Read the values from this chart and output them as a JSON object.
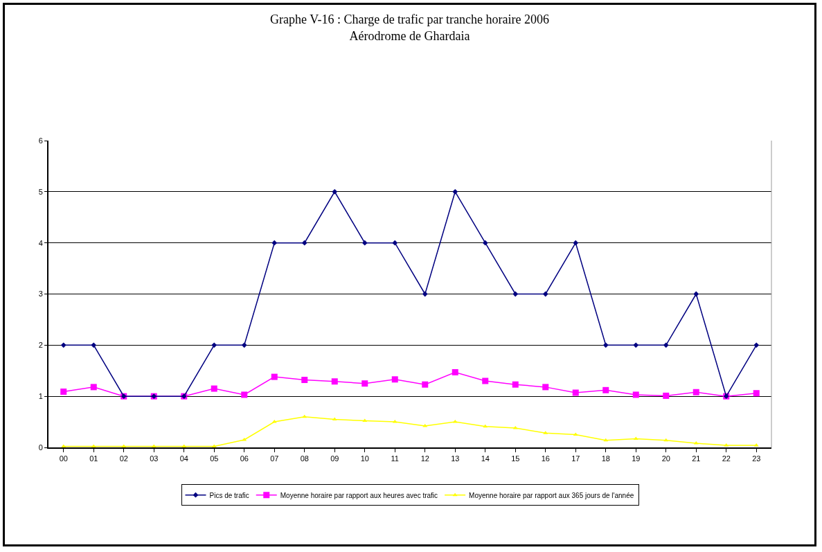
{
  "chart_data": {
    "type": "line",
    "title": "Graphe V-16 : Charge de trafic par tranche horaire 2006\nAérodrome de Ghardaia",
    "categories": [
      "00",
      "01",
      "02",
      "03",
      "04",
      "05",
      "06",
      "07",
      "08",
      "09",
      "10",
      "11",
      "12",
      "13",
      "14",
      "15",
      "16",
      "17",
      "18",
      "19",
      "20",
      "21",
      "22",
      "23"
    ],
    "series": [
      {
        "name": "Pics de trafic",
        "color": "#000080",
        "marker": "diamond",
        "values": [
          2,
          2,
          1,
          1,
          1,
          2,
          2,
          4,
          4,
          5,
          4,
          4,
          3,
          5,
          4,
          3,
          3,
          4,
          2,
          2,
          2,
          3,
          1,
          2
        ]
      },
      {
        "name": "Moyenne horaire par rapport aux heures avec trafic",
        "color": "#ff00ff",
        "marker": "square",
        "values": [
          1.09,
          1.18,
          1.0,
          1.0,
          1.0,
          1.15,
          1.03,
          1.38,
          1.32,
          1.29,
          1.25,
          1.33,
          1.23,
          1.47,
          1.3,
          1.23,
          1.18,
          1.07,
          1.12,
          1.03,
          1.01,
          1.08,
          1.0,
          1.06
        ]
      },
      {
        "name": "Moyenne horaire par rapport aux 365 jours de l'année",
        "color": "#ffff00",
        "marker": "triangle",
        "values": [
          0.02,
          0.02,
          0.02,
          0.02,
          0.02,
          0.02,
          0.15,
          0.5,
          0.6,
          0.55,
          0.52,
          0.5,
          0.42,
          0.5,
          0.41,
          0.38,
          0.28,
          0.25,
          0.14,
          0.17,
          0.14,
          0.08,
          0.04,
          0.04
        ]
      }
    ],
    "ylim": [
      0,
      6
    ],
    "yticks": [
      0,
      1,
      2,
      3,
      4,
      5,
      6
    ],
    "grid": "y",
    "legend": "bottom"
  }
}
